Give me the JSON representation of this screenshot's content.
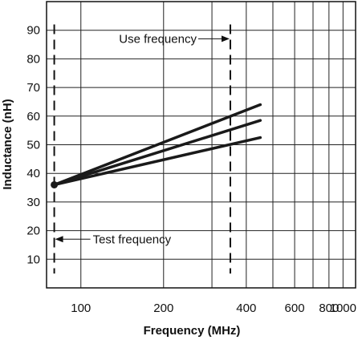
{
  "chart_data": {
    "type": "line",
    "title": "",
    "xlabel": "Frequency (MHz)",
    "ylabel": "Inductance (nH)",
    "x_scale": "log",
    "xlim": [
      75,
      1000
    ],
    "ylim": [
      0,
      100
    ],
    "x_ticks": [
      {
        "value": 100,
        "label": "100"
      },
      {
        "value": 200,
        "label": "200"
      },
      {
        "value": 400,
        "label": "400"
      },
      {
        "value": 600,
        "label": "600"
      },
      {
        "value": 800,
        "label": "800"
      },
      {
        "value": 1000,
        "label": "1000"
      }
    ],
    "x_grid": [
      75,
      100,
      200,
      300,
      400,
      500,
      600,
      700,
      800,
      900,
      1000
    ],
    "y_ticks": [
      10,
      20,
      30,
      40,
      50,
      60,
      70,
      80,
      90
    ],
    "grid": true,
    "series": [
      {
        "x": [
          80,
          450
        ],
        "y": [
          36,
          64
        ]
      },
      {
        "x": [
          80,
          450
        ],
        "y": [
          36,
          58.5
        ]
      },
      {
        "x": [
          80,
          450
        ],
        "y": [
          36,
          52.5
        ]
      }
    ],
    "start_point": {
      "x": 80,
      "y": 36
    },
    "annotations": [
      {
        "text": "Use frequency",
        "x": 350,
        "y": 87,
        "line_y_range": [
          5,
          92
        ]
      },
      {
        "text": "Test frequency",
        "x": 80,
        "y": 17,
        "line_y_range": [
          5,
          92
        ]
      }
    ]
  }
}
